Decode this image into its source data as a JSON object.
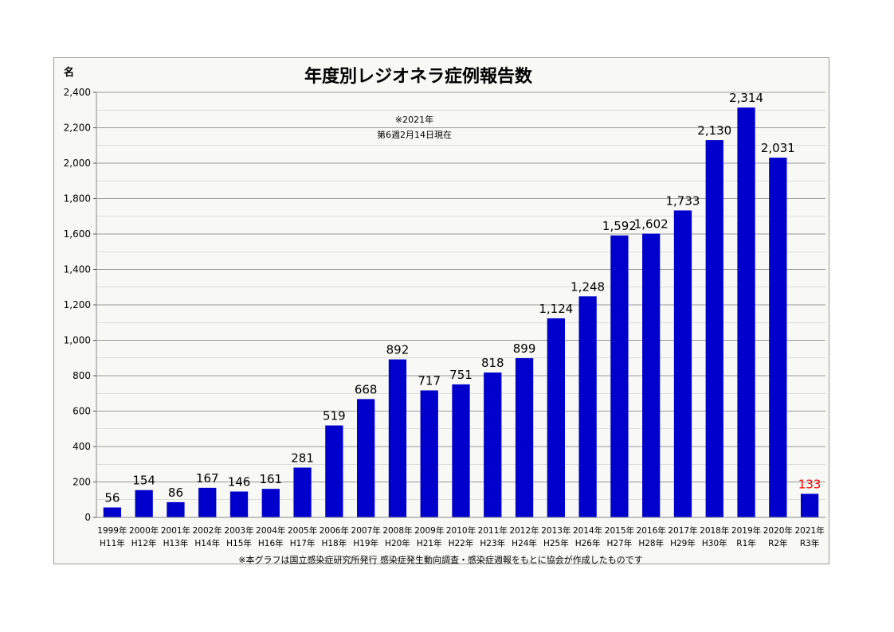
{
  "chart_data": {
    "type": "bar",
    "title": "年度別レジオネラ症例報告数",
    "ylabel": "名",
    "ylim": [
      0,
      2400
    ],
    "yticks": [
      0,
      200,
      400,
      600,
      800,
      1000,
      1200,
      1400,
      1600,
      1800,
      2000,
      2200,
      2400
    ],
    "ytick_labels": [
      "0",
      "200",
      "400",
      "600",
      "800",
      "1,000",
      "1,200",
      "1,400",
      "1,600",
      "1,800",
      "2,000",
      "2,200",
      "2,400"
    ],
    "grid": true,
    "note": [
      "※2021年",
      "第6週2月14日現在"
    ],
    "footnote": "※本グラフは国立感染症研究所発行 感染症発生動向調査・感染症週報をもとに協会が作成したものです",
    "categories": [
      [
        "1999年",
        "H11年"
      ],
      [
        "2000年",
        "H12年"
      ],
      [
        "2001年",
        "H13年"
      ],
      [
        "2002年",
        "H14年"
      ],
      [
        "2003年",
        "H15年"
      ],
      [
        "2004年",
        "H16年"
      ],
      [
        "2005年",
        "H17年"
      ],
      [
        "2006年",
        "H18年"
      ],
      [
        "2007年",
        "H19年"
      ],
      [
        "2008年",
        "H20年"
      ],
      [
        "2009年",
        "H21年"
      ],
      [
        "2010年",
        "H22年"
      ],
      [
        "2011年",
        "H23年"
      ],
      [
        "2012年",
        "H24年"
      ],
      [
        "2013年",
        "H25年"
      ],
      [
        "2014年",
        "H26年"
      ],
      [
        "2015年",
        "H27年"
      ],
      [
        "2016年",
        "H28年"
      ],
      [
        "2017年",
        "H29年"
      ],
      [
        "2018年",
        "H30年"
      ],
      [
        "2019年",
        "R1年"
      ],
      [
        "2020年",
        "R2年"
      ],
      [
        "2021年",
        "R3年"
      ]
    ],
    "values": [
      56,
      154,
      86,
      167,
      146,
      161,
      281,
      519,
      668,
      892,
      717,
      751,
      818,
      899,
      1124,
      1248,
      1592,
      1602,
      1733,
      2130,
      2314,
      2031,
      133
    ],
    "value_labels": [
      "56",
      "154",
      "86",
      "167",
      "146",
      "161",
      "281",
      "519",
      "668",
      "892",
      "717",
      "751",
      "818",
      "899",
      "1,124",
      "1,248",
      "1,592",
      "1,602",
      "1,733",
      "2,130",
      "2,314",
      "2,031",
      "133"
    ],
    "colors": {
      "bar": "#0000cc",
      "label": "#000000",
      "highlight_label": "#ff0000",
      "grid": "#9a9a9a"
    },
    "highlight_index": 22
  }
}
